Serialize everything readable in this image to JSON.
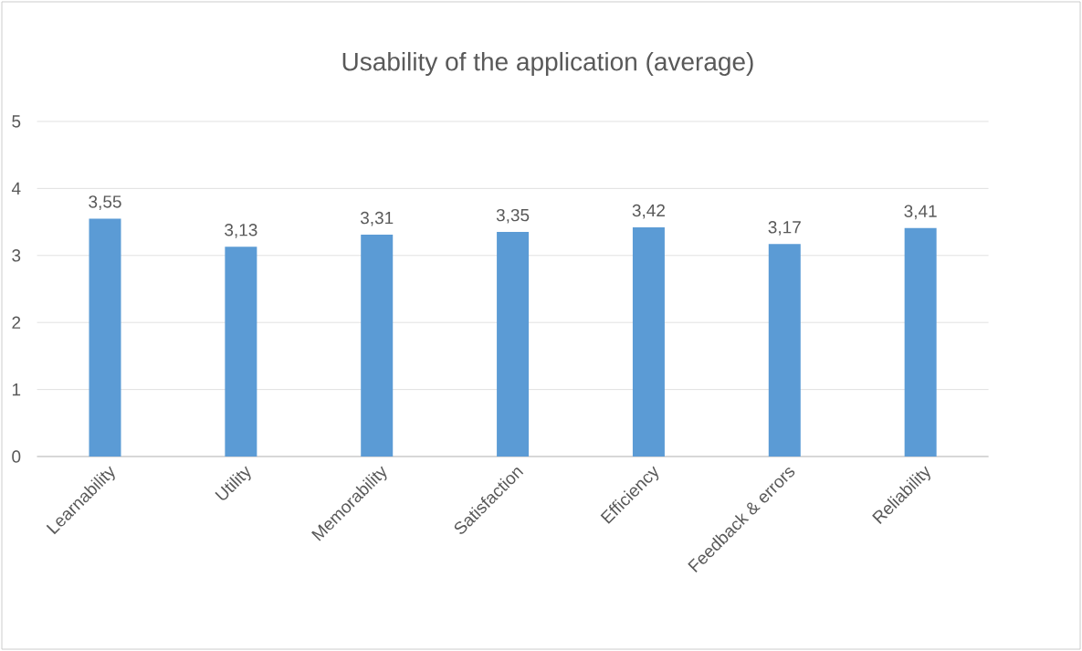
{
  "chart_data": {
    "type": "bar",
    "title": "Usability of the application (average)",
    "categories": [
      "Learnability",
      "Utility",
      "Memorability",
      "Satisfaction",
      "Efficiency",
      "Feedback & errors",
      "Reliability"
    ],
    "values": [
      3.55,
      3.13,
      3.31,
      3.35,
      3.42,
      3.17,
      3.41
    ],
    "value_labels": [
      "3,55",
      "3,13",
      "3,31",
      "3,35",
      "3,42",
      "3,17",
      "3,41"
    ],
    "color": "#5b9bd5",
    "ylim": [
      0,
      5
    ],
    "yticks": [
      0,
      1,
      2,
      3,
      4,
      5
    ],
    "grid": "y"
  }
}
